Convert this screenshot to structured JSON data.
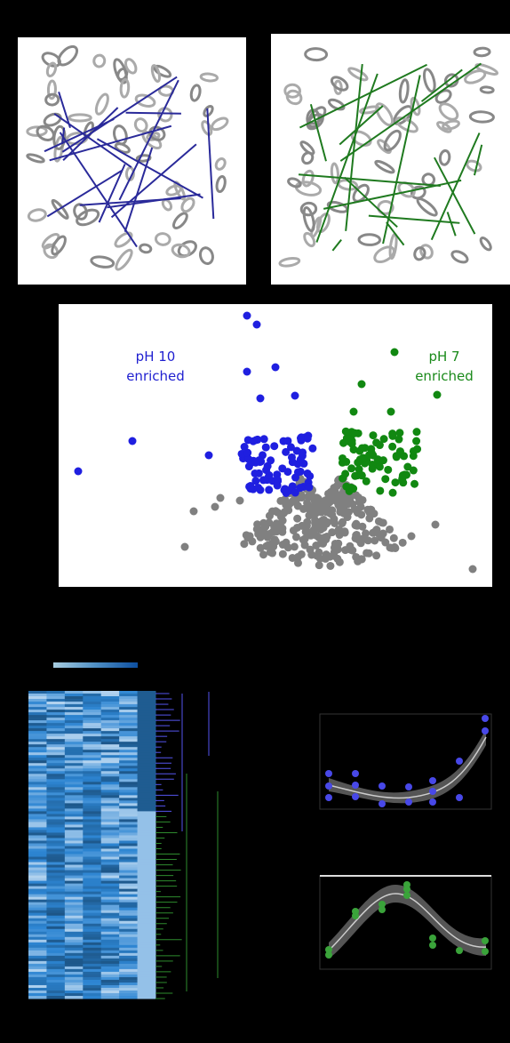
{
  "annotations": {
    "ph10": {
      "line1": "pH 10",
      "line2": "enriched"
    },
    "ph7": {
      "line1": "pH 7",
      "line2": "enriched"
    }
  }
}
